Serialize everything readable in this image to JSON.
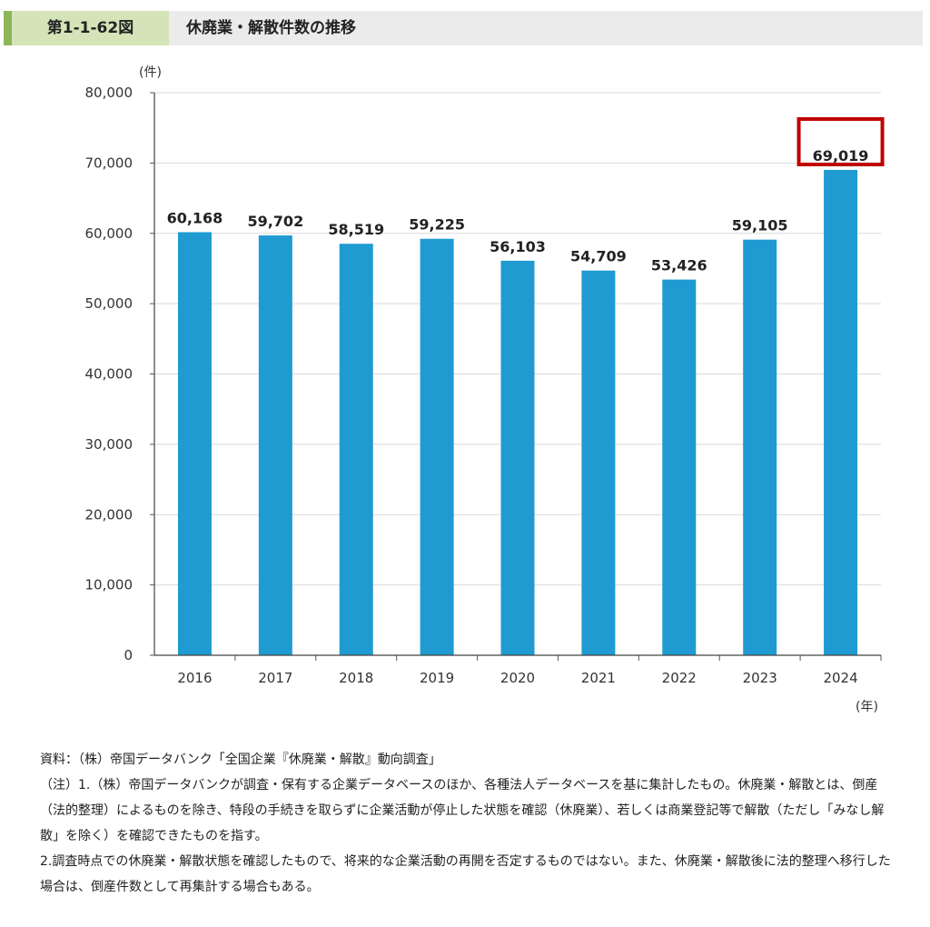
{
  "header": {
    "label": "第1-1-62図",
    "title": "休廃業・解散件数の推移"
  },
  "chart_data": {
    "type": "bar",
    "title": "休廃業・解散件数の推移",
    "categories": [
      "2016",
      "2017",
      "2018",
      "2019",
      "2020",
      "2021",
      "2022",
      "2023",
      "2024"
    ],
    "values": [
      60168,
      59702,
      58519,
      59225,
      56103,
      54709,
      53426,
      59105,
      69019
    ],
    "value_labels": [
      "60,168",
      "59,702",
      "58,519",
      "59,225",
      "56,103",
      "54,709",
      "53,426",
      "59,105",
      "69,019"
    ],
    "y_unit": "(件)",
    "x_unit": "(年)",
    "ylim": [
      0,
      80000
    ],
    "yticks": [
      0,
      10000,
      20000,
      30000,
      40000,
      50000,
      60000,
      70000,
      80000
    ],
    "ytick_labels": [
      "0",
      "10,000",
      "20,000",
      "30,000",
      "40,000",
      "50,000",
      "60,000",
      "70,000",
      "80,000"
    ],
    "grid": true,
    "bar_color": "#1f9bd1",
    "highlight_index": 8,
    "highlight_color": "#c00000"
  },
  "notes": [
    "資料：（株）帝国データバンク「全国企業『休廃業・解散』動向調査」",
    "（注）1.（株）帝国データバンクが調査・保有する企業データベースのほか、各種法人データベースを基に集計したもの。休廃業・解散とは、倒産（法的整理）によるものを除き、特段の手続きを取らずに企業活動が停止した状態を確認（休廃業）、若しくは商業登記等で解散（ただし「みなし解散」を除く）を確認できたものを指す。",
    "2.調査時点での休廃業・解散状態を確認したもので、将来的な企業活動の再開を否定するものではない。また、休廃業・解散後に法的整理へ移行した場合は、倒産件数として再集計する場合もある。"
  ]
}
